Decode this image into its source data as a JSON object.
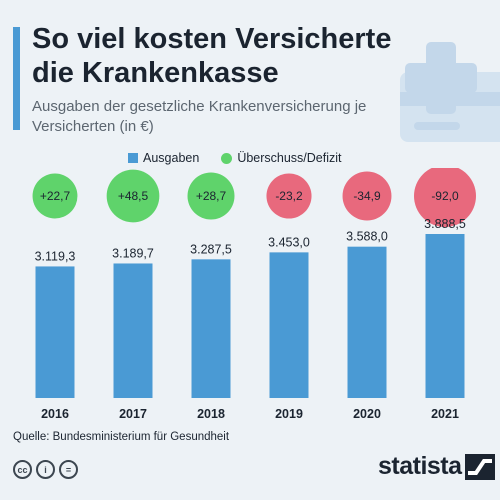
{
  "title": "So viel kosten Versicherte die Krankenkasse",
  "subtitle": "Ausgaben der gesetzliche Krankenversicherung je Versicherten (in €)",
  "legend": {
    "bars": "Ausgaben",
    "bubbles": "Überschuss/Defizit"
  },
  "source": "Quelle: Bundesministerium für Gesundheit",
  "brand": "statista",
  "colors": {
    "bar": "#4a9ad4",
    "surplus": "#5fd36b",
    "deficit": "#e8697d",
    "text": "#1b2430",
    "background": "#edf2f6"
  },
  "icons": [
    "creative-commons-icon",
    "attribution-icon",
    "no-derivatives-icon",
    "statista-logo-icon",
    "insurance-card-icon"
  ],
  "chart_data": {
    "type": "bar",
    "categories": [
      "2016",
      "2017",
      "2018",
      "2019",
      "2020",
      "2021"
    ],
    "series": [
      {
        "name": "Ausgaben",
        "values": [
          3119.3,
          3189.7,
          3287.5,
          3453.0,
          3588.0,
          3888.5
        ],
        "labels": [
          "3.119,3",
          "3.189,7",
          "3.287,5",
          "3.453,0",
          "3.588,0",
          "3.888,5"
        ]
      },
      {
        "name": "Überschuss/Defizit",
        "values": [
          22.7,
          48.5,
          28.7,
          -23.2,
          -34.9,
          -92.0
        ],
        "labels": [
          "+22,7",
          "+48,5",
          "+28,7",
          "-23,2",
          "-34,9",
          "-92,0"
        ]
      }
    ],
    "ylim": [
      0,
      3888.5
    ],
    "grid": false,
    "legend_position": "top"
  }
}
